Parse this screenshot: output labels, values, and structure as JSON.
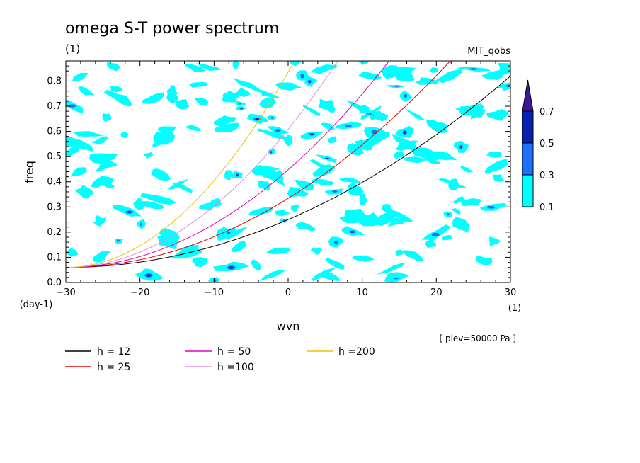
{
  "chart_data": {
    "type": "contour",
    "title": "omega S-T power spectrum",
    "subtitle": "(1)",
    "dataset_label": "MIT_qobs",
    "xlabel": "wvn",
    "xunit": "(1)",
    "ylabel": "freq",
    "yunit": "(day-1)",
    "xlim": [
      -30,
      30
    ],
    "ylim": [
      0,
      0.88
    ],
    "xticks": [
      -30,
      -20,
      -10,
      0,
      10,
      20,
      30
    ],
    "yticks": [
      0.0,
      0.1,
      0.2,
      0.3,
      0.4,
      0.5,
      0.6,
      0.7,
      0.8
    ],
    "level_note": "[ plev=50000 Pa ]",
    "colorbar": {
      "levels": [
        "0.1",
        "0.3",
        "0.5",
        "0.7"
      ],
      "colors": [
        "#00ffff",
        "#1e6fff",
        "#0a1fb4",
        "#3c14a0"
      ]
    },
    "series": [
      {
        "name": "h = 12",
        "label": "h = 12",
        "h": 12,
        "color": "#000000"
      },
      {
        "name": "h = 25",
        "label": "h = 25",
        "h": 25,
        "color": "#e00000"
      },
      {
        "name": "h = 50",
        "label": "h = 50",
        "h": 50,
        "color": "#e000c0"
      },
      {
        "name": "h =100",
        "label": "h =100",
        "h": 100,
        "color": "#e090e0"
      },
      {
        "name": "h =200",
        "label": "h =200",
        "h": 200,
        "color": "#f0c000"
      }
    ]
  }
}
